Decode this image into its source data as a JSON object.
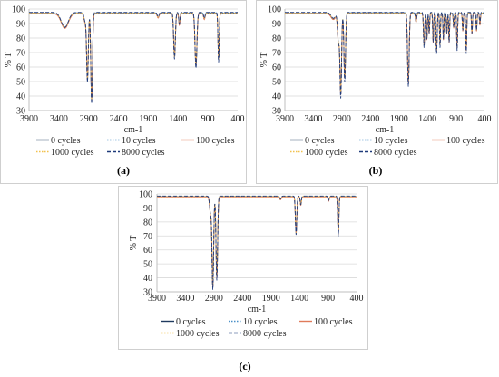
{
  "figure": {
    "panel_labels": [
      "(a)",
      "(b)",
      "(c)"
    ]
  },
  "chart_data": [
    {
      "panel": "(a)",
      "type": "line",
      "xlabel": "cm-1",
      "ylabel": "% T",
      "xlim": [
        3900,
        400
      ],
      "ylim": [
        30,
        100
      ],
      "x_reversed": true,
      "xticks": [
        3900,
        3400,
        2900,
        2400,
        1900,
        1400,
        900,
        400
      ],
      "yticks": [
        30,
        40,
        50,
        60,
        70,
        80,
        90,
        100
      ],
      "legend_position": "bottom",
      "baseline": 97,
      "peaks": [
        {
          "x": 3300,
          "depth": 10,
          "width": 60
        },
        {
          "x": 2960,
          "depth": 6,
          "width": 18
        },
        {
          "x": 2920,
          "depth": 45,
          "width": 14
        },
        {
          "x": 2850,
          "depth": 60,
          "width": 14
        },
        {
          "x": 1735,
          "depth": 3,
          "width": 15
        },
        {
          "x": 1460,
          "depth": 30,
          "width": 14
        },
        {
          "x": 1378,
          "depth": 8,
          "width": 10
        },
        {
          "x": 1100,
          "depth": 36,
          "width": 16
        },
        {
          "x": 960,
          "depth": 4,
          "width": 12
        },
        {
          "x": 720,
          "depth": 32,
          "width": 10
        }
      ],
      "series": [
        {
          "name": "0 cycles",
          "color": "#1f3a5f",
          "dash": "solid",
          "offset": 0,
          "scale": 1.0
        },
        {
          "name": "10 cycles",
          "color": "#4a90c8",
          "dash": "dot",
          "offset": 1.2,
          "scale": 0.99
        },
        {
          "name": "100 cycles",
          "color": "#e07b5a",
          "dash": "solid",
          "offset": -0.6,
          "scale": 1.01
        },
        {
          "name": "1000 cycles",
          "color": "#f2c14e",
          "dash": "dot",
          "offset": 0.6,
          "scale": 0.98
        },
        {
          "name": "8000 cycles",
          "color": "#1f3a7a",
          "dash": "dash",
          "offset": 1.8,
          "scale": 1.02
        }
      ]
    },
    {
      "panel": "(b)",
      "type": "line",
      "xlabel": "cm-1",
      "ylabel": "% T",
      "xlim": [
        3900,
        400
      ],
      "ylim": [
        30,
        100
      ],
      "x_reversed": true,
      "xticks": [
        3900,
        3400,
        2900,
        2400,
        1900,
        1400,
        900,
        400
      ],
      "yticks": [
        30,
        40,
        50,
        60,
        70,
        80,
        90,
        100
      ],
      "legend_position": "bottom",
      "baseline": 97,
      "peaks": [
        {
          "x": 3050,
          "depth": 4,
          "width": 40
        },
        {
          "x": 2960,
          "depth": 20,
          "width": 16
        },
        {
          "x": 2920,
          "depth": 55,
          "width": 14
        },
        {
          "x": 2850,
          "depth": 45,
          "width": 14
        },
        {
          "x": 1735,
          "depth": 48,
          "width": 14
        },
        {
          "x": 1600,
          "depth": 6,
          "width": 10
        },
        {
          "x": 1460,
          "depth": 22,
          "width": 10
        },
        {
          "x": 1410,
          "depth": 18,
          "width": 8
        },
        {
          "x": 1370,
          "depth": 14,
          "width": 8
        },
        {
          "x": 1300,
          "depth": 20,
          "width": 8
        },
        {
          "x": 1240,
          "depth": 26,
          "width": 10
        },
        {
          "x": 1180,
          "depth": 22,
          "width": 8
        },
        {
          "x": 1120,
          "depth": 18,
          "width": 8
        },
        {
          "x": 1060,
          "depth": 14,
          "width": 8
        },
        {
          "x": 1020,
          "depth": 20,
          "width": 8
        },
        {
          "x": 940,
          "depth": 10,
          "width": 8
        },
        {
          "x": 880,
          "depth": 24,
          "width": 8
        },
        {
          "x": 780,
          "depth": 12,
          "width": 8
        },
        {
          "x": 720,
          "depth": 26,
          "width": 8
        },
        {
          "x": 620,
          "depth": 14,
          "width": 8
        },
        {
          "x": 540,
          "depth": 12,
          "width": 8
        },
        {
          "x": 480,
          "depth": 8,
          "width": 8
        }
      ],
      "series": [
        {
          "name": "0 cycles",
          "color": "#1f3a5f",
          "dash": "solid",
          "offset": 0,
          "scale": 1.0
        },
        {
          "name": "10 cycles",
          "color": "#4a90c8",
          "dash": "dot",
          "offset": 1.2,
          "scale": 0.98
        },
        {
          "name": "100 cycles",
          "color": "#e07b5a",
          "dash": "solid",
          "offset": -0.6,
          "scale": 1.01
        },
        {
          "name": "1000 cycles",
          "color": "#f2c14e",
          "dash": "dot",
          "offset": 0.6,
          "scale": 0.97
        },
        {
          "name": "8000 cycles",
          "color": "#1f3a7a",
          "dash": "dash",
          "offset": 1.8,
          "scale": 1.03
        }
      ]
    },
    {
      "panel": "(c)",
      "type": "line",
      "xlabel": "cm-1",
      "ylabel": "% T",
      "xlim": [
        3900,
        400
      ],
      "ylim": [
        30,
        100
      ],
      "x_reversed": true,
      "xticks": [
        3900,
        3400,
        2900,
        2400,
        1900,
        1400,
        900,
        400
      ],
      "yticks": [
        30,
        40,
        50,
        60,
        70,
        80,
        90,
        100
      ],
      "legend_position": "bottom",
      "baseline": 98,
      "peaks": [
        {
          "x": 2960,
          "depth": 12,
          "width": 16
        },
        {
          "x": 2920,
          "depth": 64,
          "width": 14
        },
        {
          "x": 2850,
          "depth": 58,
          "width": 14
        },
        {
          "x": 1735,
          "depth": 2,
          "width": 14
        },
        {
          "x": 1460,
          "depth": 26,
          "width": 12
        },
        {
          "x": 1378,
          "depth": 6,
          "width": 10
        },
        {
          "x": 890,
          "depth": 3,
          "width": 10
        },
        {
          "x": 720,
          "depth": 27,
          "width": 10
        }
      ],
      "series": [
        {
          "name": "0 cycles",
          "color": "#1f3a5f",
          "dash": "solid",
          "offset": 0,
          "scale": 1.0
        },
        {
          "name": "10 cycles",
          "color": "#4a90c8",
          "dash": "dot",
          "offset": 0.8,
          "scale": 0.99
        },
        {
          "name": "100 cycles",
          "color": "#e07b5a",
          "dash": "solid",
          "offset": -0.4,
          "scale": 1.01
        },
        {
          "name": "1000 cycles",
          "color": "#f2c14e",
          "dash": "dot",
          "offset": 0.4,
          "scale": 0.98
        },
        {
          "name": "8000 cycles",
          "color": "#1f3a7a",
          "dash": "dash",
          "offset": 1.2,
          "scale": 1.02
        }
      ]
    }
  ]
}
